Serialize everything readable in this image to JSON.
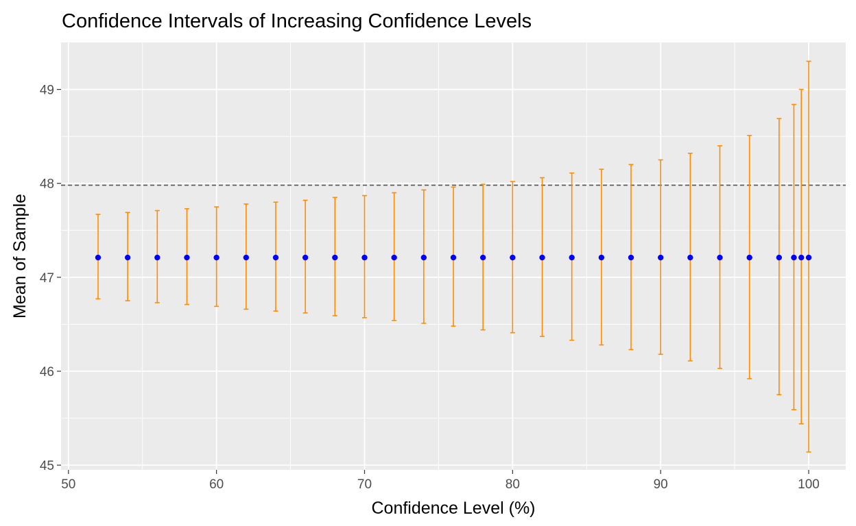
{
  "chart_data": {
    "type": "scatter",
    "title": "Confidence Intervals of Increasing Confidence Levels",
    "xlabel": "Confidence Level (%)",
    "ylabel": "Mean of Sample",
    "xlim": [
      49.5,
      102.5
    ],
    "ylim": [
      44.95,
      49.5
    ],
    "x_ticks": [
      50,
      60,
      70,
      80,
      90,
      100
    ],
    "x_tick_labels": [
      "50",
      "60",
      "70",
      "80",
      "90",
      "100"
    ],
    "y_ticks": [
      45,
      46,
      47,
      48,
      49
    ],
    "y_tick_labels": [
      "45",
      "46",
      "47",
      "48",
      "49"
    ],
    "grid": true,
    "reference_line": {
      "y": 47.98,
      "style": "dashed",
      "color": "#555555"
    },
    "point_color": "#0000ff",
    "errorbar_color": "#ff8c00",
    "background_color": "#ebebeb",
    "series": [
      {
        "x": [
          52,
          54,
          56,
          58,
          60,
          62,
          64,
          66,
          68,
          70,
          72,
          74,
          76,
          78,
          80,
          82,
          84,
          86,
          88,
          90,
          92,
          94,
          96,
          98,
          99,
          99.5,
          100
        ],
        "y": [
          47.21,
          47.21,
          47.21,
          47.21,
          47.21,
          47.21,
          47.21,
          47.21,
          47.21,
          47.21,
          47.21,
          47.21,
          47.21,
          47.21,
          47.21,
          47.21,
          47.21,
          47.21,
          47.21,
          47.21,
          47.21,
          47.21,
          47.21,
          47.21,
          47.21,
          47.21,
          47.21
        ],
        "lower": [
          46.77,
          46.75,
          46.73,
          46.71,
          46.69,
          46.66,
          46.64,
          46.62,
          46.59,
          46.57,
          46.54,
          46.51,
          46.48,
          46.44,
          46.41,
          46.37,
          46.33,
          46.28,
          46.23,
          46.18,
          46.11,
          46.03,
          45.92,
          45.75,
          45.59,
          45.44,
          45.14
        ],
        "upper": [
          47.67,
          47.69,
          47.71,
          47.73,
          47.75,
          47.78,
          47.8,
          47.82,
          47.85,
          47.87,
          47.9,
          47.93,
          47.96,
          47.99,
          48.02,
          48.06,
          48.11,
          48.15,
          48.2,
          48.25,
          48.32,
          48.4,
          48.51,
          48.69,
          48.84,
          49.0,
          49.3
        ]
      }
    ]
  }
}
